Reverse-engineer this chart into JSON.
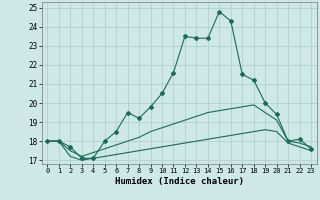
{
  "xlabel": "Humidex (Indice chaleur)",
  "background_color": "#cde8e5",
  "grid_color": "#aaceca",
  "line_color": "#1a6b5a",
  "xlim": [
    -0.5,
    23.5
  ],
  "ylim": [
    16.8,
    25.3
  ],
  "xticks": [
    0,
    1,
    2,
    3,
    4,
    5,
    6,
    7,
    8,
    9,
    10,
    11,
    12,
    13,
    14,
    15,
    16,
    17,
    18,
    19,
    20,
    21,
    22,
    23
  ],
  "yticks": [
    17,
    18,
    19,
    20,
    21,
    22,
    23,
    24,
    25
  ],
  "curve1_x": [
    0,
    1,
    2,
    3,
    4,
    5,
    6,
    7,
    8,
    9,
    10,
    11,
    12,
    13,
    14,
    15,
    16,
    17,
    18,
    19,
    20,
    21,
    22,
    23
  ],
  "curve1_y": [
    18.0,
    18.0,
    17.7,
    17.1,
    17.1,
    18.0,
    18.5,
    19.5,
    19.2,
    19.8,
    20.5,
    21.6,
    23.5,
    23.4,
    23.4,
    24.8,
    24.3,
    21.5,
    21.2,
    20.0,
    19.4,
    18.0,
    18.1,
    17.6
  ],
  "curve2_x": [
    0,
    1,
    2,
    3,
    4,
    5,
    6,
    7,
    8,
    9,
    10,
    11,
    12,
    13,
    14,
    15,
    16,
    17,
    18,
    19,
    20,
    21,
    22,
    23
  ],
  "curve2_y": [
    18.0,
    18.0,
    17.5,
    17.2,
    17.4,
    17.6,
    17.8,
    18.0,
    18.2,
    18.5,
    18.7,
    18.9,
    19.1,
    19.3,
    19.5,
    19.6,
    19.7,
    19.8,
    19.9,
    19.5,
    19.1,
    18.0,
    17.9,
    17.7
  ],
  "curve3_x": [
    0,
    1,
    2,
    3,
    4,
    5,
    6,
    7,
    8,
    9,
    10,
    11,
    12,
    13,
    14,
    15,
    16,
    17,
    18,
    19,
    20,
    21,
    22,
    23
  ],
  "curve3_y": [
    18.0,
    18.0,
    17.2,
    17.0,
    17.1,
    17.2,
    17.3,
    17.4,
    17.5,
    17.6,
    17.7,
    17.8,
    17.9,
    18.0,
    18.1,
    18.2,
    18.3,
    18.4,
    18.5,
    18.6,
    18.5,
    17.9,
    17.7,
    17.5
  ]
}
